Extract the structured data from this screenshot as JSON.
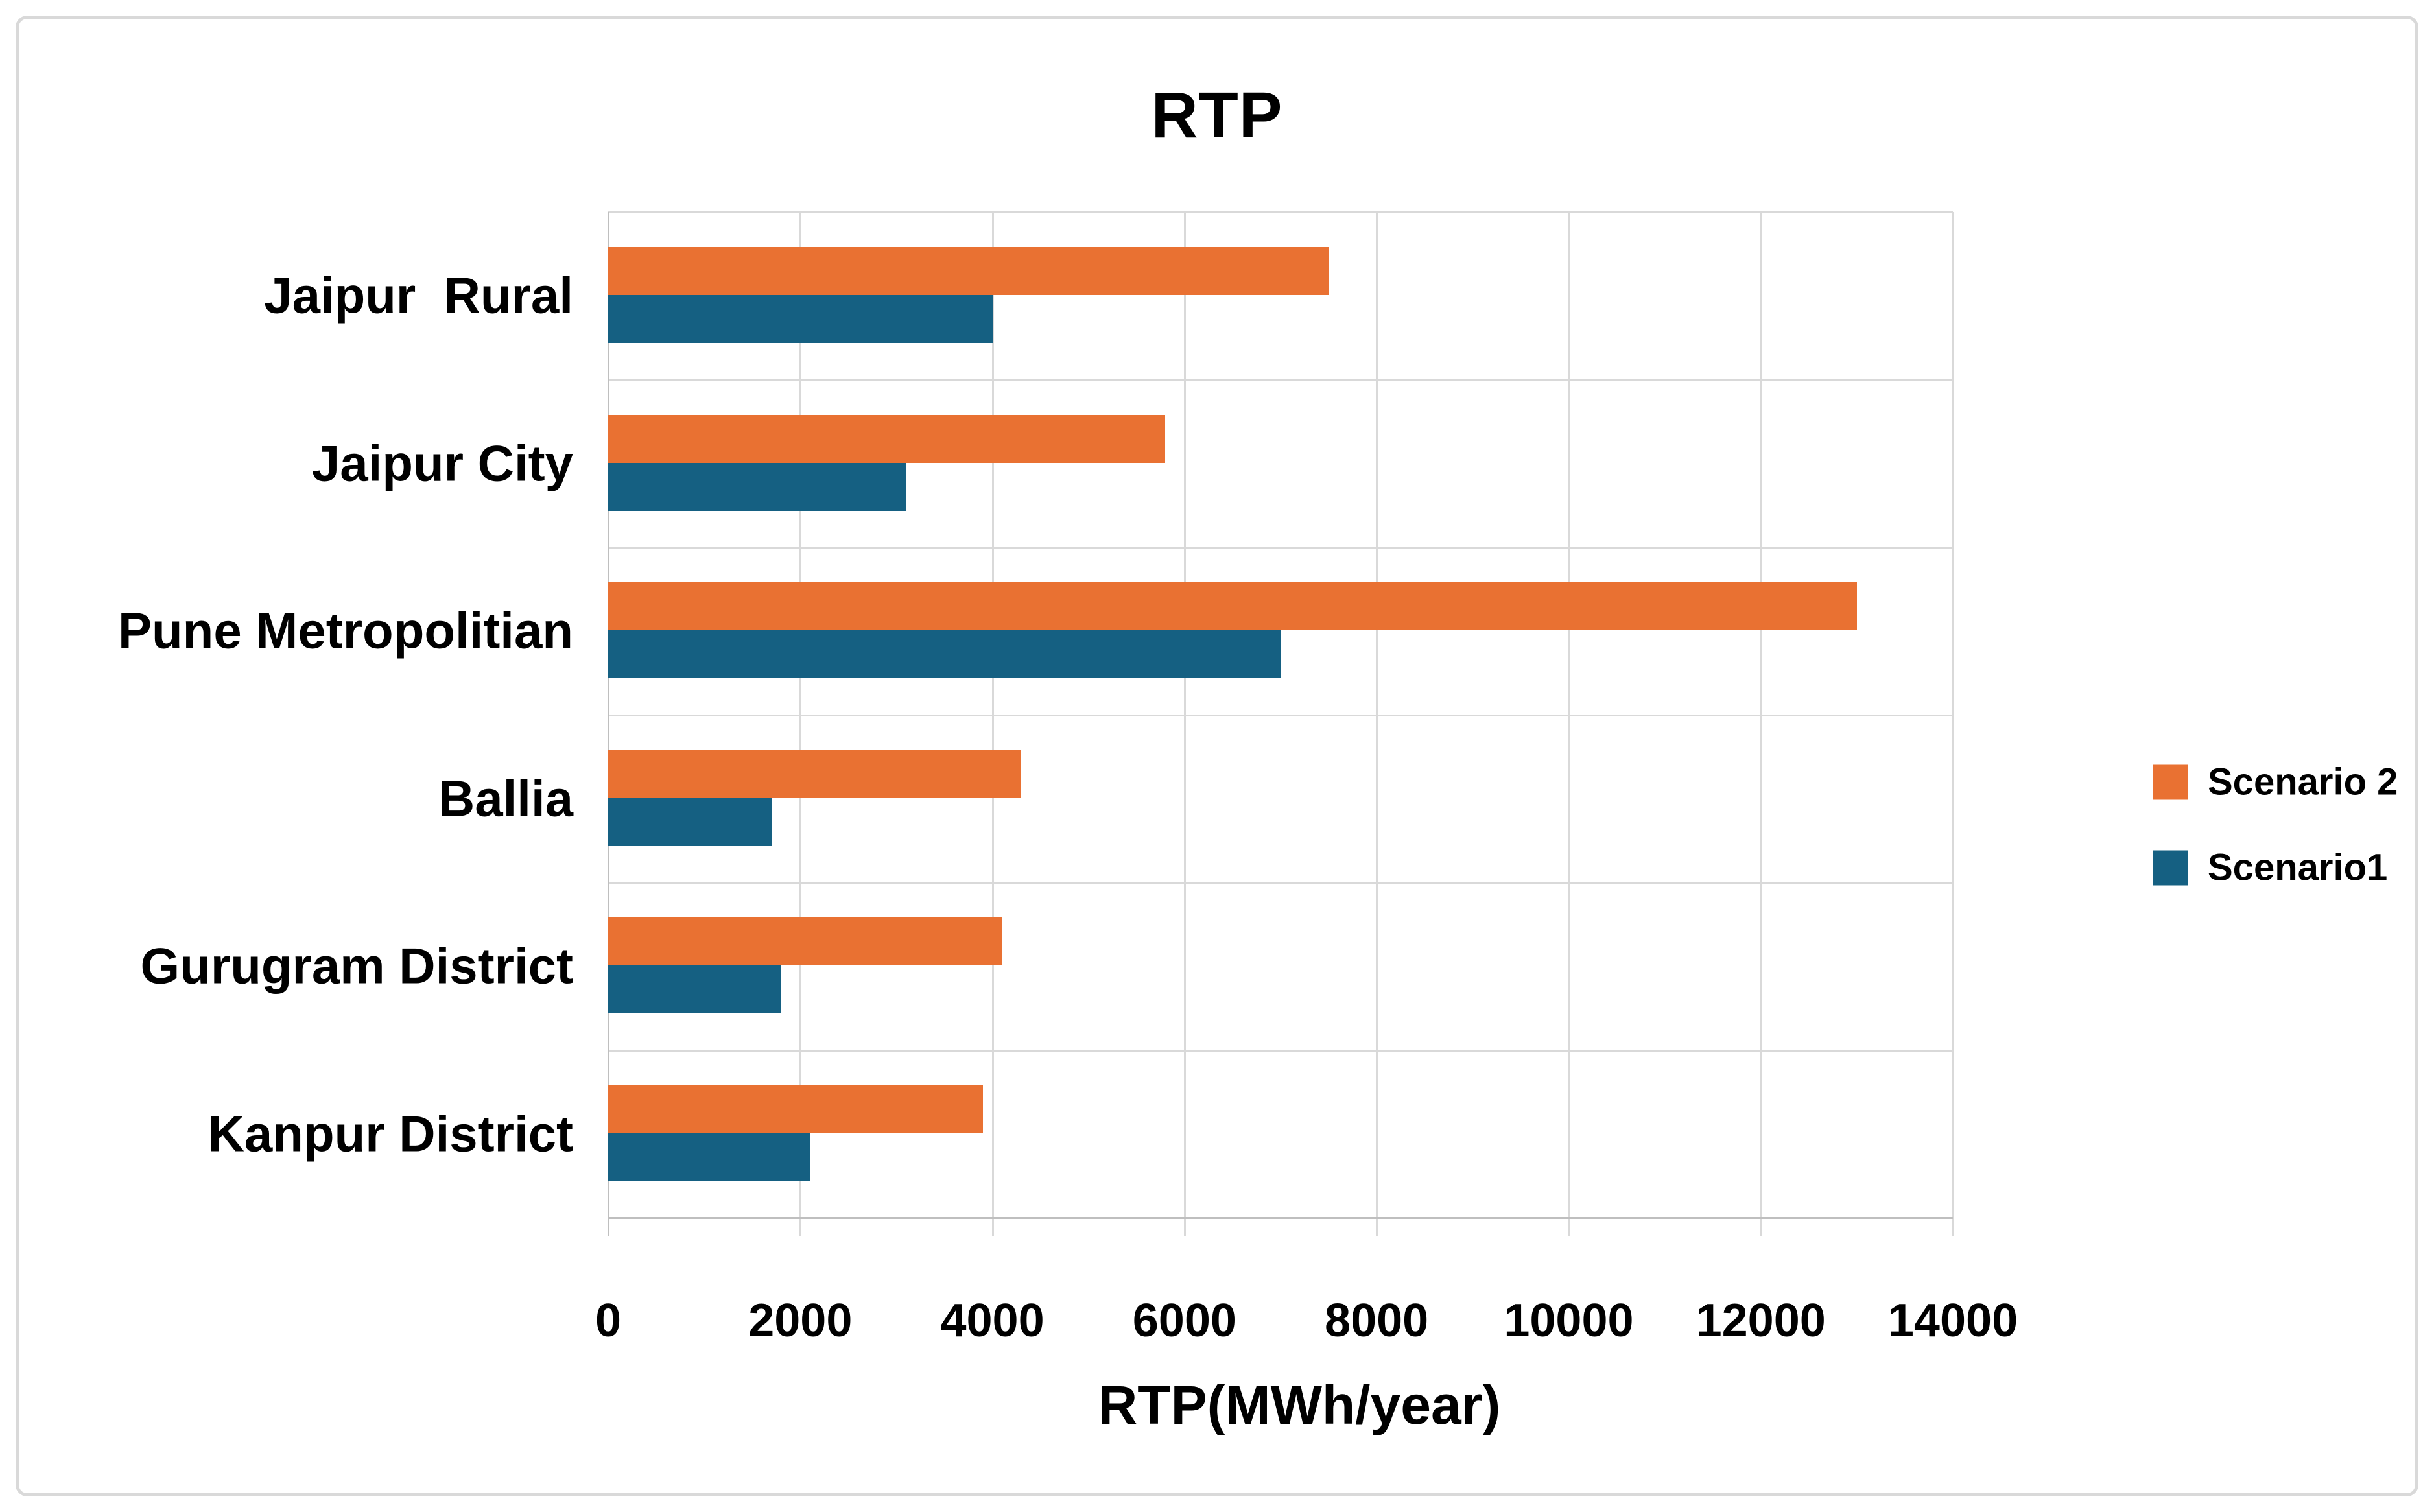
{
  "chart_data": {
    "type": "bar",
    "orientation": "horizontal",
    "title": "RTP",
    "xlabel": "RTP(MWh/year)",
    "categories": [
      "Jaipur  Rural",
      "Jaipur City",
      "Pune Metropolitian",
      "Ballia",
      "Gurugram District",
      "Kanpur District"
    ],
    "series": [
      {
        "name": "Scenario 2",
        "color": "#E97132",
        "values": [
          7500,
          5800,
          13000,
          4300,
          4100,
          3900
        ]
      },
      {
        "name": "Scenario1",
        "color": "#156082",
        "values": [
          4000,
          3100,
          7000,
          1700,
          1800,
          2100
        ]
      }
    ],
    "x_ticks": [
      "0",
      "2000",
      "4000",
      "6000",
      "8000",
      "10000",
      "12000",
      "14000"
    ],
    "x_tick_values": [
      0,
      2000,
      4000,
      6000,
      8000,
      10000,
      12000,
      14000
    ],
    "xlim": [
      0,
      14000
    ],
    "grid": true,
    "legend_position": "right-middle"
  },
  "style": {
    "scenario2_color": "#E97132",
    "scenario1_color": "#156082",
    "gridline_color": "#D9D9D9",
    "axis_line_color": "#BFBFBF",
    "text_color": "#000000",
    "frame_border_color": "#D9D9D9",
    "background_color": "#FFFFFF"
  }
}
